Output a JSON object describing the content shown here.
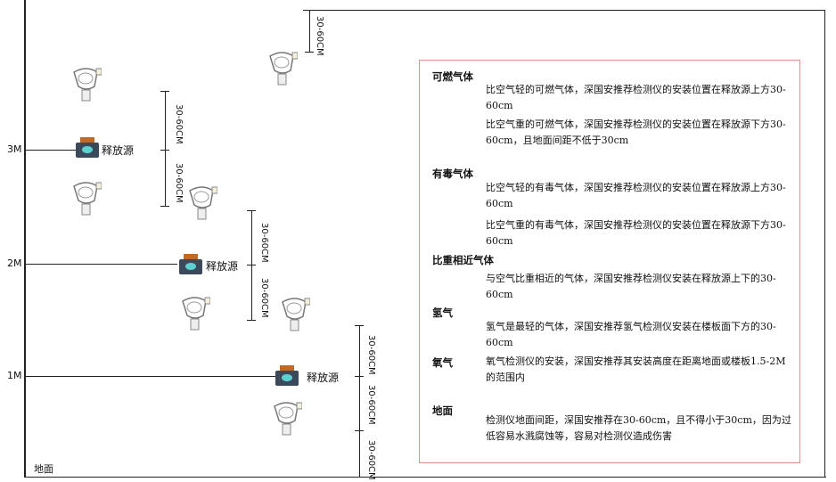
{
  "levels": {
    "m3": "3M",
    "m2": "2M",
    "m1": "1M",
    "ground": "地面"
  },
  "source_label": "释放源",
  "dim_label": "30-60CM",
  "panel": {
    "combustible": {
      "title": "可燃气体",
      "p1": "比空气轻的可燃气体，深国安推荐检测仪的安装位置在释放源上方30-60cm",
      "p2": "比空气重的可燃气体，深国安推荐检测仪的安装位置在释放源下方30-60cm，且地面间距不低于30cm"
    },
    "toxic": {
      "title": "有毒气体",
      "p1": "比空气轻的有毒气体，深国安推荐检测仪的安装位置在释放源上方30-60cm",
      "p2": "比空气重的有毒气体，深国安推荐检测仪的安装位置在释放源下方30-60cm"
    },
    "similar": {
      "title": "比重相近气体",
      "p1": "与空气比重相近的气体，深国安推荐检测仪安装在释放源上下的30-60cm"
    },
    "hydrogen": {
      "title": "氢气",
      "p1": "氢气是最轻的气体，深国安推荐氢气检测仪安装在楼板面下方的30-60cm"
    },
    "oxygen": {
      "title": "氧气",
      "p1": "氧气检测仪的安装，深国安推荐其安装高度在距离地面或楼板1.5-2M的范围内"
    },
    "ground": {
      "title": "地面",
      "p1": "检测仪地面间距，深国安推荐在30-60cm，且不得小于30cm，因为过低容易水溅腐蚀等，容易对检测仪造成伤害"
    }
  },
  "colors": {
    "panel_border": "#e88a8a",
    "source_body": "#3a4a5a",
    "source_top": "#c06a2a",
    "source_face": "#5fd0d0"
  }
}
